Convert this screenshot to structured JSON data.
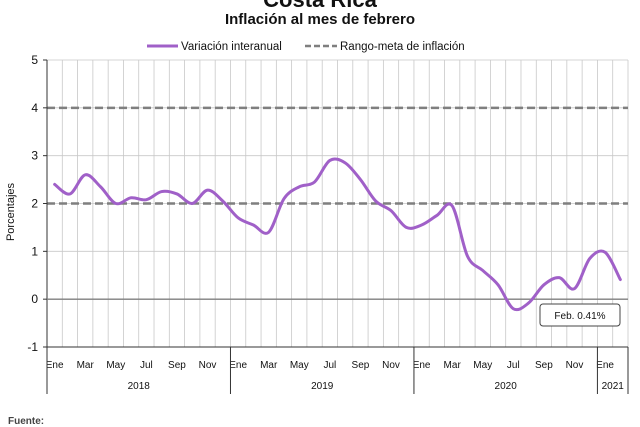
{
  "header": {
    "title": "Costa Rica",
    "subtitle": "Inflación al mes de febrero"
  },
  "footer": {
    "source_label": "Fuente:"
  },
  "colors": {
    "series": "#a060c8",
    "target": "#7f7f7f",
    "grid": "#c8c8c8",
    "zero": "#808080"
  },
  "chart_data": {
    "type": "line",
    "title": "Costa Rica",
    "subtitle": "Inflación al mes de febrero",
    "ylabel": "Porcentajes",
    "xlabel": "",
    "ylim": [
      -1,
      5
    ],
    "yticks": [
      -1,
      0,
      1,
      2,
      3,
      4,
      5
    ],
    "grid": true,
    "legend_position": "top",
    "x": [
      "2018-01",
      "2018-02",
      "2018-03",
      "2018-04",
      "2018-05",
      "2018-06",
      "2018-07",
      "2018-08",
      "2018-09",
      "2018-10",
      "2018-11",
      "2018-12",
      "2019-01",
      "2019-02",
      "2019-03",
      "2019-04",
      "2019-05",
      "2019-06",
      "2019-07",
      "2019-08",
      "2019-09",
      "2019-10",
      "2019-11",
      "2019-12",
      "2020-01",
      "2020-02",
      "2020-03",
      "2020-04",
      "2020-05",
      "2020-06",
      "2020-07",
      "2020-08",
      "2020-09",
      "2020-10",
      "2020-11",
      "2020-12",
      "2021-01",
      "2021-02"
    ],
    "month_tick_labels": [
      "Ene",
      "",
      "Mar",
      "",
      "May",
      "",
      "Jul",
      "",
      "Sep",
      "",
      "Nov",
      "",
      "Ene",
      "",
      "Mar",
      "",
      "May",
      "",
      "Jul",
      "",
      "Sep",
      "",
      "Nov",
      "",
      "Ene",
      "",
      "Mar",
      "",
      "May",
      "",
      "Jul",
      "",
      "Sep",
      "",
      "Nov",
      "",
      "Ene",
      ""
    ],
    "year_labels": [
      {
        "label": "2018",
        "start": 0,
        "end": 12
      },
      {
        "label": "2019",
        "start": 12,
        "end": 24
      },
      {
        "label": "2020",
        "start": 24,
        "end": 36
      },
      {
        "label": "2021",
        "start": 36,
        "end": 38
      }
    ],
    "series": [
      {
        "name": "Variación interanual",
        "style": "solid",
        "values": [
          2.4,
          2.2,
          2.6,
          2.35,
          2.0,
          2.12,
          2.08,
          2.25,
          2.2,
          2.0,
          2.28,
          2.05,
          1.7,
          1.55,
          1.4,
          2.1,
          2.35,
          2.45,
          2.9,
          2.85,
          2.5,
          2.05,
          1.85,
          1.5,
          1.55,
          1.75,
          1.95,
          0.9,
          0.6,
          0.3,
          -0.2,
          -0.08,
          0.3,
          0.45,
          0.22,
          0.85,
          0.98,
          0.41
        ]
      },
      {
        "name": "Rango-meta de inflación",
        "style": "dashed",
        "lines": [
          2,
          4
        ]
      }
    ],
    "annotation": {
      "text": "Feb. 0.41%",
      "index": 37,
      "value": 0.41
    }
  }
}
